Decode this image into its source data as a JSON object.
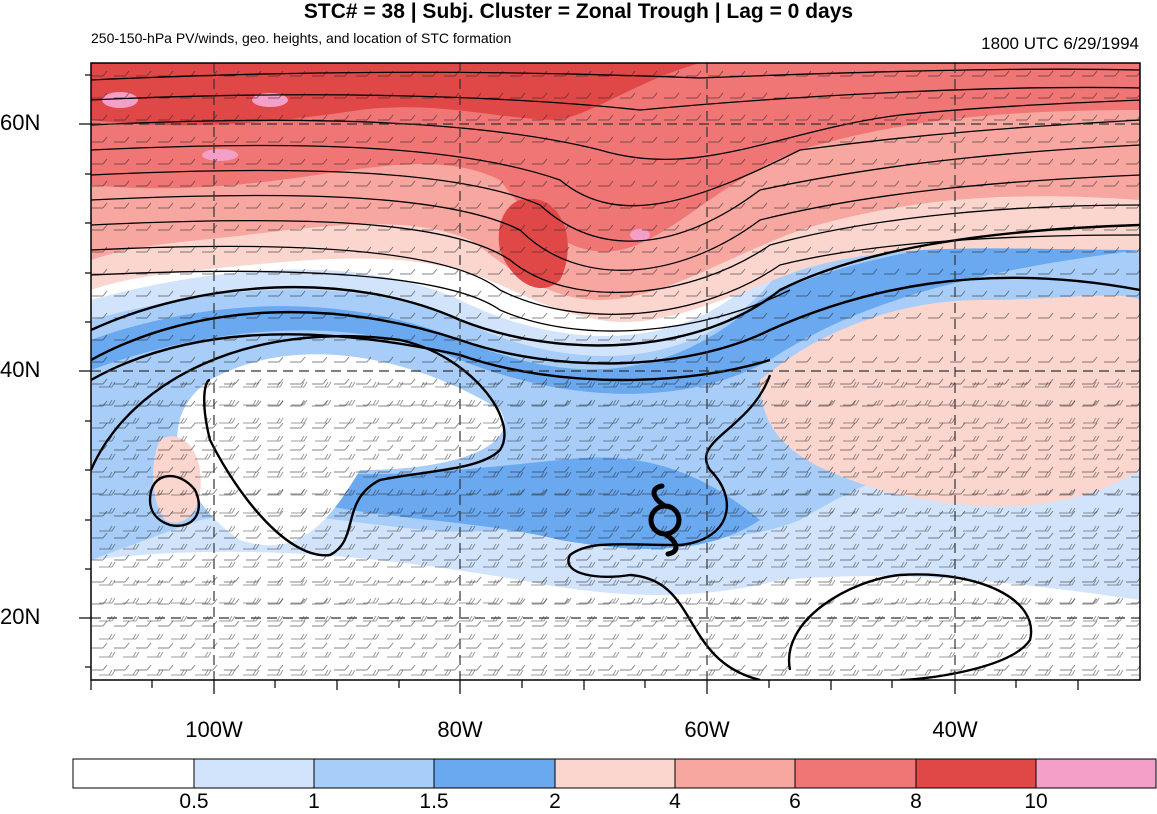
{
  "title": "STC# = 38 | Subj. Cluster = Zonal Trough | Lag = 0 days",
  "subtitle": "250-150-hPa PV/winds, geo. heights, and location of STC formation",
  "datetime": "1800 UTC  6/29/1994",
  "map": {
    "lat_labels": [
      "60N",
      "40N",
      "20N"
    ],
    "lon_labels": [
      "100W",
      "80W",
      "60W",
      "40W"
    ],
    "stc_marker": "hurricane-symbol"
  },
  "colorbar": {
    "labels": [
      "0.5",
      "1",
      "1.5",
      "2",
      "4",
      "6",
      "8",
      "10"
    ],
    "colors": [
      "#ffffff",
      "#d2e4fb",
      "#a7cdf8",
      "#6aa8f0",
      "#fbd6cf",
      "#f7a6a0",
      "#f07575",
      "#e04848",
      "#f49fc8"
    ]
  }
}
